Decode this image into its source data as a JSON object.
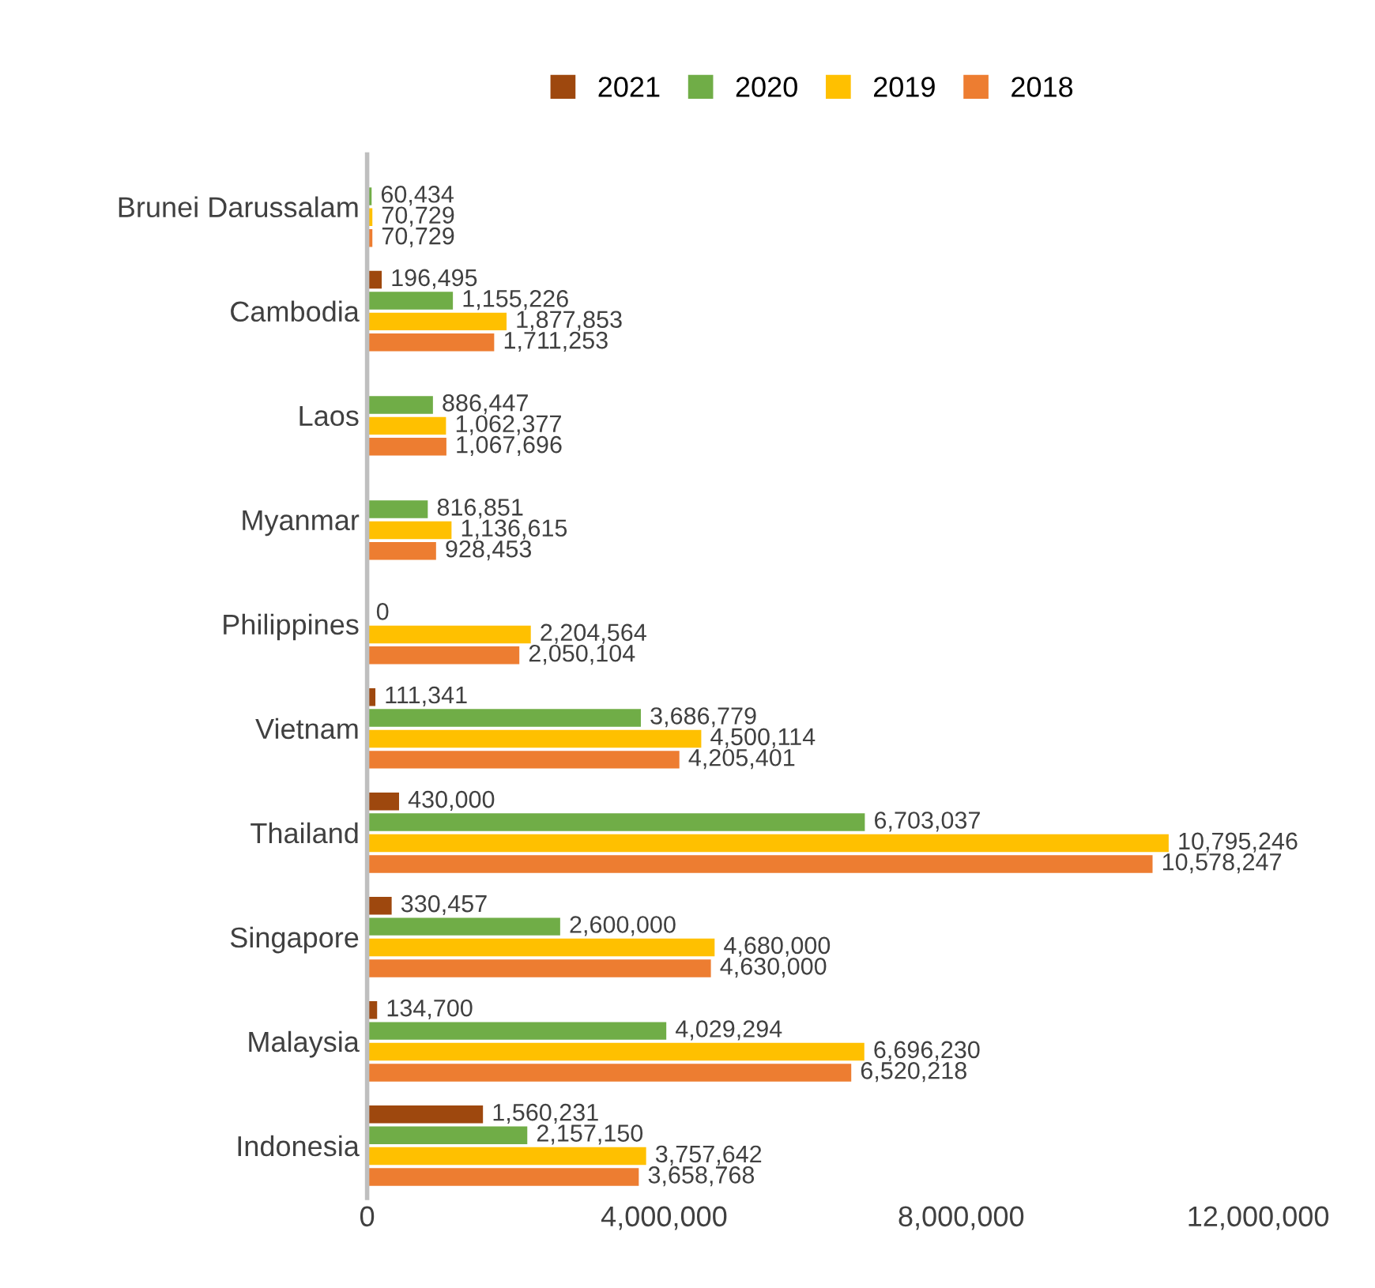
{
  "chart_data": {
    "type": "bar",
    "orientation": "horizontal",
    "categories": [
      "Brunei Darussalam",
      "Cambodia",
      "Laos",
      "Myanmar",
      "Philippines",
      "Vietnam",
      "Thailand",
      "Singapore",
      "Malaysia",
      "Indonesia"
    ],
    "series": [
      {
        "name": "2021",
        "color": "#9e480e",
        "values": [
          null,
          196495,
          null,
          null,
          null,
          111341,
          430000,
          330457,
          134700,
          1560231
        ],
        "value_labels": [
          null,
          "196,495",
          null,
          null,
          null,
          "111,341",
          "430,000",
          "330,457",
          "134,700",
          "1,560,231"
        ]
      },
      {
        "name": "2020",
        "color": "#70ad47",
        "values": [
          60434,
          1155226,
          886447,
          816851,
          0,
          3686779,
          6703037,
          2600000,
          4029294,
          2157150
        ],
        "value_labels": [
          "60,434",
          "1,155,226",
          "886,447",
          "816,851",
          "0",
          "3,686,779",
          "6,703,037",
          "2,600,000",
          "4,029,294",
          "2,157,150"
        ]
      },
      {
        "name": "2019",
        "color": "#ffc000",
        "values": [
          70729,
          1877853,
          1062377,
          1136615,
          2204564,
          4500114,
          10795246,
          4680000,
          6696230,
          3757642
        ],
        "value_labels": [
          "70,729",
          "1,877,853",
          "1,062,377",
          "1,136,615",
          "2,204,564",
          "4,500,114",
          "10,795,246",
          "4,680,000",
          "6,696,230",
          "3,757,642"
        ]
      },
      {
        "name": "2018",
        "color": "#ed7d31",
        "values": [
          70729,
          1711253,
          1067696,
          928453,
          2050104,
          4205401,
          10578247,
          4630000,
          6520218,
          3658768
        ],
        "value_labels": [
          "70,729",
          "1,711,253",
          "1,067,696",
          "928,453",
          "2,050,104",
          "4,205,401",
          "10,578,247",
          "4,630,000",
          "6,520,218",
          "3,658,768"
        ]
      }
    ],
    "xlim": [
      0,
      12000000
    ],
    "xticks": [
      0,
      {
        "value": 4000000,
        "label": "4,000,000"
      },
      {
        "value": 8000000,
        "label": "8,000,000"
      },
      {
        "value": 12000000,
        "label": "12,000,000"
      }
    ],
    "legend": "top",
    "grid": false
  }
}
